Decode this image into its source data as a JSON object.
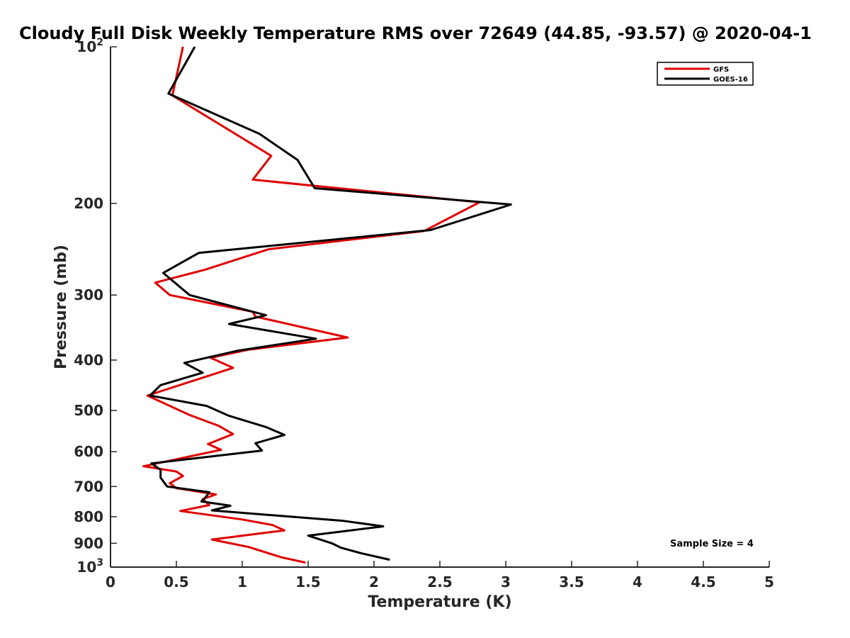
{
  "chart_data": {
    "type": "line",
    "title": "Cloudy Full Disk Weekly Temperature RMS over 72649 (44.85, -93.57) @ 2020-04-1",
    "xlabel": "Temperature (K)",
    "ylabel": "Pressure (mb)",
    "xlim": [
      0,
      5
    ],
    "ylim": [
      100,
      1000
    ],
    "y_scale": "log",
    "y_reversed": true,
    "grid": false,
    "legend_position": "top-right",
    "x_ticks": [
      {
        "value": 0,
        "label": "0"
      },
      {
        "value": 0.5,
        "label": "0.5"
      },
      {
        "value": 1,
        "label": "1"
      },
      {
        "value": 1.5,
        "label": "1.5"
      },
      {
        "value": 2,
        "label": "2"
      },
      {
        "value": 2.5,
        "label": "2.5"
      },
      {
        "value": 3,
        "label": "3"
      },
      {
        "value": 3.5,
        "label": "3.5"
      },
      {
        "value": 4,
        "label": "4"
      },
      {
        "value": 4.5,
        "label": "4.5"
      },
      {
        "value": 5,
        "label": "5"
      }
    ],
    "y_ticks": [
      {
        "value": 100,
        "base": "10",
        "exp": "2"
      },
      {
        "value": 200,
        "label": "200"
      },
      {
        "value": 300,
        "label": "300"
      },
      {
        "value": 400,
        "label": "400"
      },
      {
        "value": 500,
        "label": "500"
      },
      {
        "value": 600,
        "label": "600"
      },
      {
        "value": 700,
        "label": "700"
      },
      {
        "value": 800,
        "label": "800"
      },
      {
        "value": 900,
        "label": "900"
      },
      {
        "value": 1000,
        "base": "10",
        "exp": "3"
      }
    ],
    "annotation": "Sample Size = 4",
    "series": [
      {
        "name": "GFS",
        "color": "#e00000",
        "points": [
          [
            0.55,
            100
          ],
          [
            0.47,
            124
          ],
          [
            1.22,
            162
          ],
          [
            1.08,
            180
          ],
          [
            2.8,
            199
          ],
          [
            2.38,
            226
          ],
          [
            1.2,
            245
          ],
          [
            0.72,
            268
          ],
          [
            0.34,
            284
          ],
          [
            0.45,
            300
          ],
          [
            1.08,
            323
          ],
          [
            1.1,
            330
          ],
          [
            1.8,
            362
          ],
          [
            1.05,
            382
          ],
          [
            0.76,
            396
          ],
          [
            0.93,
            414
          ],
          [
            0.28,
            468
          ],
          [
            0.6,
            510
          ],
          [
            0.82,
            535
          ],
          [
            0.93,
            555
          ],
          [
            0.74,
            580
          ],
          [
            0.84,
            595
          ],
          [
            0.25,
            640
          ],
          [
            0.5,
            655
          ],
          [
            0.55,
            668
          ],
          [
            0.45,
            690
          ],
          [
            0.5,
            705
          ],
          [
            0.8,
            725
          ],
          [
            0.7,
            740
          ],
          [
            0.75,
            760
          ],
          [
            0.53,
            780
          ],
          [
            1.0,
            810
          ],
          [
            1.23,
            830
          ],
          [
            1.32,
            850
          ],
          [
            0.77,
            885
          ],
          [
            1.05,
            915
          ],
          [
            1.15,
            932
          ],
          [
            1.3,
            958
          ],
          [
            1.48,
            980
          ]
        ]
      },
      {
        "name": "GOES-16",
        "color": "#000000",
        "points": [
          [
            0.64,
            100
          ],
          [
            0.44,
            123
          ],
          [
            1.13,
            147
          ],
          [
            1.42,
            165
          ],
          [
            1.55,
            187
          ],
          [
            3.04,
            201
          ],
          [
            2.43,
            225
          ],
          [
            0.67,
            249
          ],
          [
            0.4,
            272
          ],
          [
            0.6,
            300
          ],
          [
            1.18,
            328
          ],
          [
            0.9,
            341
          ],
          [
            1.56,
            364
          ],
          [
            0.96,
            384
          ],
          [
            0.56,
            405
          ],
          [
            0.7,
            423
          ],
          [
            0.38,
            447
          ],
          [
            0.3,
            468
          ],
          [
            0.73,
            490
          ],
          [
            0.9,
            512
          ],
          [
            1.18,
            538
          ],
          [
            1.32,
            557
          ],
          [
            1.1,
            578
          ],
          [
            1.15,
            597
          ],
          [
            0.31,
            632
          ],
          [
            0.38,
            650
          ],
          [
            0.38,
            673
          ],
          [
            0.43,
            700
          ],
          [
            0.75,
            718
          ],
          [
            0.72,
            735
          ],
          [
            0.69,
            748
          ],
          [
            0.91,
            762
          ],
          [
            0.77,
            778
          ],
          [
            1.77,
            815
          ],
          [
            2.07,
            835
          ],
          [
            1.5,
            870
          ],
          [
            1.68,
            900
          ],
          [
            1.75,
            918
          ],
          [
            1.9,
            940
          ],
          [
            2.12,
            968
          ]
        ]
      }
    ]
  }
}
